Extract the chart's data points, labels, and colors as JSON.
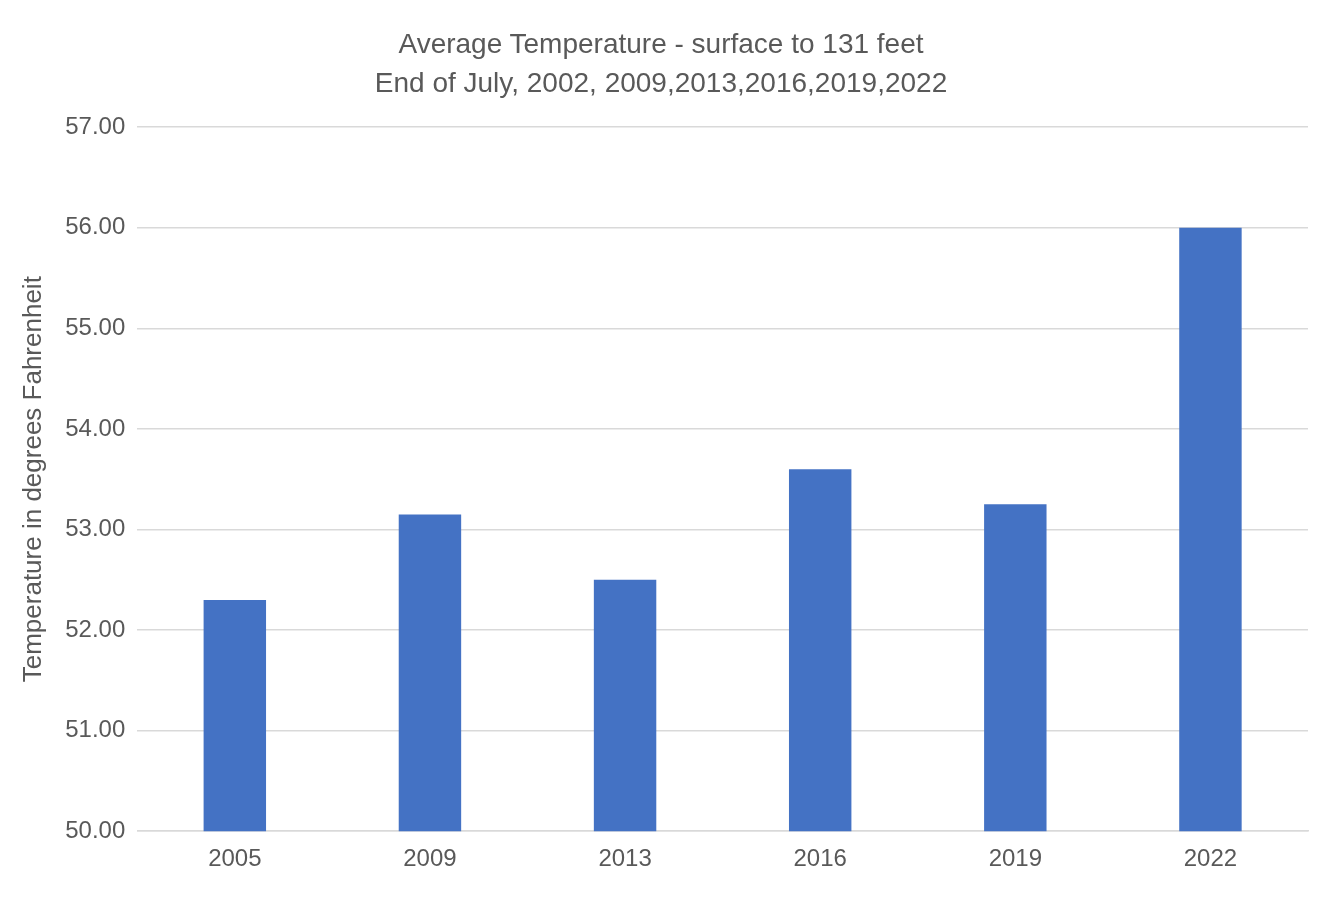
{
  "chart_data": {
    "type": "bar",
    "title": "Average Temperature - surface to 131 feet",
    "subtitle": "End of July, 2002, 2009,2013,2016,2019,2022",
    "ylabel": "Temperature in degrees Fahrenheit",
    "categories": [
      "2005",
      "2009",
      "2013",
      "2016",
      "2019",
      "2022"
    ],
    "values": [
      52.3,
      53.15,
      52.5,
      53.6,
      53.25,
      56.0
    ],
    "color": "#4472c4",
    "ylim": [
      50,
      57
    ],
    "yticks": [
      {
        "value": 50,
        "label": "50.00"
      },
      {
        "value": 51,
        "label": "51.00"
      },
      {
        "value": 52,
        "label": "52.00"
      },
      {
        "value": 53,
        "label": "53.00"
      },
      {
        "value": 54,
        "label": "54.00"
      },
      {
        "value": 55,
        "label": "55.00"
      },
      {
        "value": 56,
        "label": "56.00"
      },
      {
        "value": 57,
        "label": "57.00"
      }
    ],
    "grid": "y",
    "legend": false
  }
}
